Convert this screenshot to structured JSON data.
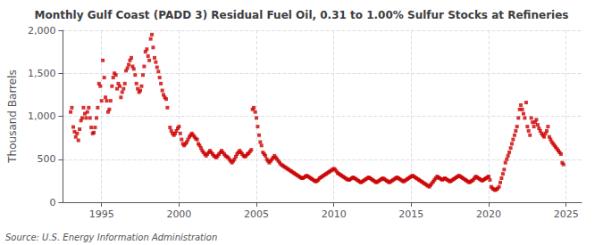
{
  "chart_data": {
    "type": "scatter",
    "title": "Monthly Gulf Coast (PADD 3) Residual Fuel Oil, 0.31 to 1.00% Sulfur Stocks at Refineries",
    "ylabel": "Thousand Barrels",
    "annotation": "Source: U.S. Energy Information Administration",
    "color": "#cc0000",
    "marker": "square",
    "grid": true,
    "xlim": [
      1992.5,
      2026.0
    ],
    "xticks": [
      1995,
      2000,
      2005,
      2010,
      2015,
      2020,
      2025
    ],
    "ylim": [
      0,
      2000
    ],
    "yticks": [
      0,
      500,
      {
        "value": 1000,
        "label": "1,000"
      },
      {
        "value": 1500,
        "label": "1,500"
      },
      {
        "value": 2000,
        "label": "2,000"
      }
    ],
    "x": [
      1993.0,
      1993.08,
      1993.17,
      1993.25,
      1993.33,
      1993.42,
      1993.5,
      1993.58,
      1993.67,
      1993.75,
      1993.83,
      1993.92,
      1994.0,
      1994.08,
      1994.17,
      1994.25,
      1994.33,
      1994.42,
      1994.5,
      1994.58,
      1994.67,
      1994.75,
      1994.83,
      1994.92,
      1995.0,
      1995.08,
      1995.17,
      1995.25,
      1995.33,
      1995.42,
      1995.5,
      1995.58,
      1995.67,
      1995.75,
      1995.83,
      1995.92,
      1996.0,
      1996.08,
      1996.17,
      1996.25,
      1996.33,
      1996.42,
      1996.5,
      1996.58,
      1996.67,
      1996.75,
      1996.83,
      1996.92,
      1997.0,
      1997.08,
      1997.17,
      1997.25,
      1997.33,
      1997.42,
      1997.5,
      1997.58,
      1997.67,
      1997.75,
      1997.83,
      1997.92,
      1998.0,
      1998.08,
      1998.17,
      1998.25,
      1998.33,
      1998.42,
      1998.5,
      1998.58,
      1998.67,
      1998.75,
      1998.83,
      1998.92,
      1999.0,
      1999.08,
      1999.17,
      1999.25,
      1999.42,
      1999.5,
      1999.58,
      1999.67,
      1999.75,
      1999.83,
      1999.92,
      2000.0,
      2000.08,
      2000.17,
      2000.25,
      2000.33,
      2000.42,
      2000.5,
      2000.58,
      2000.67,
      2000.75,
      2000.83,
      2000.92,
      2001.0,
      2001.08,
      2001.17,
      2001.25,
      2001.33,
      2001.42,
      2001.5,
      2001.58,
      2001.67,
      2001.75,
      2001.83,
      2001.92,
      2002.0,
      2002.08,
      2002.17,
      2002.25,
      2002.33,
      2002.42,
      2002.5,
      2002.58,
      2002.67,
      2002.75,
      2002.83,
      2002.92,
      2003.0,
      2003.08,
      2003.17,
      2003.25,
      2003.33,
      2003.42,
      2003.5,
      2003.58,
      2003.67,
      2003.75,
      2003.83,
      2003.92,
      2004.0,
      2004.08,
      2004.17,
      2004.25,
      2004.33,
      2004.42,
      2004.5,
      2004.58,
      2004.67,
      2004.75,
      2004.83,
      2004.92,
      2005.0,
      2005.08,
      2005.17,
      2005.25,
      2005.33,
      2005.42,
      2005.5,
      2005.58,
      2005.67,
      2005.75,
      2005.83,
      2005.92,
      2006.0,
      2006.08,
      2006.17,
      2006.25,
      2006.33,
      2006.42,
      2006.5,
      2006.58,
      2006.67,
      2006.75,
      2006.83,
      2006.92,
      2007.0,
      2007.08,
      2007.17,
      2007.25,
      2007.33,
      2007.42,
      2007.5,
      2007.58,
      2007.67,
      2007.75,
      2007.83,
      2007.92,
      2008.0,
      2008.08,
      2008.17,
      2008.25,
      2008.33,
      2008.42,
      2008.5,
      2008.58,
      2008.67,
      2008.75,
      2008.83,
      2008.92,
      2009.0,
      2009.08,
      2009.17,
      2009.25,
      2009.33,
      2009.42,
      2009.5,
      2009.58,
      2009.67,
      2009.75,
      2009.83,
      2009.92,
      2010.0,
      2010.08,
      2010.17,
      2010.25,
      2010.33,
      2010.42,
      2010.5,
      2010.58,
      2010.67,
      2010.75,
      2010.83,
      2010.92,
      2011.0,
      2011.08,
      2011.17,
      2011.25,
      2011.33,
      2011.42,
      2011.5,
      2011.58,
      2011.67,
      2011.75,
      2011.83,
      2011.92,
      2012.0,
      2012.08,
      2012.17,
      2012.25,
      2012.33,
      2012.42,
      2012.5,
      2012.58,
      2012.67,
      2012.75,
      2012.83,
      2012.92,
      2013.0,
      2013.08,
      2013.17,
      2013.25,
      2013.33,
      2013.42,
      2013.5,
      2013.58,
      2013.67,
      2013.75,
      2013.83,
      2013.92,
      2014.0,
      2014.08,
      2014.17,
      2014.25,
      2014.33,
      2014.42,
      2014.5,
      2014.58,
      2014.67,
      2014.75,
      2014.83,
      2014.92,
      2015.0,
      2015.08,
      2015.17,
      2015.25,
      2015.33,
      2015.42,
      2015.5,
      2015.58,
      2015.67,
      2015.75,
      2015.83,
      2015.92,
      2016.0,
      2016.08,
      2016.17,
      2016.25,
      2016.33,
      2016.42,
      2016.5,
      2016.58,
      2016.67,
      2016.75,
      2016.83,
      2016.92,
      2017.0,
      2017.08,
      2017.17,
      2017.25,
      2017.33,
      2017.42,
      2017.5,
      2017.58,
      2017.67,
      2017.75,
      2017.83,
      2017.92,
      2018.0,
      2018.08,
      2018.17,
      2018.25,
      2018.33,
      2018.42,
      2018.5,
      2018.58,
      2018.67,
      2018.75,
      2018.83,
      2018.92,
      2019.0,
      2019.08,
      2019.17,
      2019.25,
      2019.33,
      2019.42,
      2019.5,
      2019.58,
      2019.67,
      2019.75,
      2019.83,
      2019.92,
      2020.0,
      2020.08,
      2020.17,
      2020.25,
      2020.33,
      2020.42,
      2020.5,
      2020.58,
      2020.67,
      2020.75,
      2020.83,
      2020.92,
      2021.0,
      2021.08,
      2021.17,
      2021.25,
      2021.33,
      2021.42,
      2021.5,
      2021.58,
      2021.67,
      2021.75,
      2021.83,
      2021.92,
      2022.0,
      2022.08,
      2022.17,
      2022.25,
      2022.33,
      2022.42,
      2022.5,
      2022.58,
      2022.67,
      2022.75,
      2022.83,
      2022.92,
      2023.0,
      2023.08,
      2023.17,
      2023.25,
      2023.33,
      2023.42,
      2023.5,
      2023.58,
      2023.67,
      2023.75,
      2023.83,
      2023.92,
      2024.0,
      2024.08,
      2024.17,
      2024.25,
      2024.33,
      2024.42,
      2024.5,
      2024.58,
      2024.67,
      2024.75,
      2024.83
    ],
    "values": [
      1050,
      1100,
      875,
      820,
      760,
      800,
      720,
      850,
      950,
      980,
      1100,
      1030,
      980,
      1050,
      1100,
      980,
      870,
      800,
      810,
      870,
      980,
      1100,
      1380,
      1350,
      1180,
      1650,
      1450,
      1220,
      1180,
      1050,
      1080,
      1180,
      1350,
      1450,
      1500,
      1480,
      1320,
      1380,
      1350,
      1220,
      1280,
      1320,
      1380,
      1530,
      1560,
      1600,
      1650,
      1680,
      1580,
      1550,
      1480,
      1380,
      1320,
      1280,
      1300,
      1350,
      1480,
      1580,
      1750,
      1780,
      1700,
      1650,
      1900,
      1950,
      1800,
      1680,
      1630,
      1570,
      1520,
      1450,
      1380,
      1300,
      1250,
      1220,
      1200,
      1100,
      870,
      830,
      800,
      780,
      800,
      830,
      860,
      880,
      800,
      730,
      680,
      660,
      680,
      700,
      730,
      760,
      780,
      800,
      780,
      760,
      740,
      730,
      680,
      660,
      630,
      600,
      580,
      560,
      540,
      560,
      580,
      600,
      580,
      560,
      540,
      530,
      520,
      540,
      560,
      580,
      600,
      580,
      560,
      540,
      530,
      520,
      500,
      480,
      460,
      480,
      500,
      530,
      560,
      580,
      600,
      580,
      560,
      540,
      530,
      540,
      560,
      570,
      590,
      610,
      1080,
      1100,
      1050,
      980,
      880,
      780,
      700,
      660,
      580,
      560,
      540,
      500,
      480,
      460,
      480,
      500,
      520,
      540,
      520,
      500,
      480,
      460,
      440,
      430,
      420,
      410,
      400,
      390,
      380,
      370,
      360,
      350,
      340,
      330,
      320,
      310,
      300,
      290,
      280,
      280,
      290,
      300,
      310,
      300,
      290,
      280,
      270,
      260,
      250,
      240,
      250,
      260,
      280,
      290,
      300,
      310,
      320,
      330,
      340,
      350,
      360,
      370,
      380,
      390,
      380,
      360,
      340,
      330,
      320,
      310,
      300,
      290,
      280,
      270,
      260,
      260,
      270,
      280,
      290,
      280,
      270,
      260,
      250,
      240,
      230,
      240,
      250,
      260,
      270,
      280,
      290,
      280,
      270,
      260,
      250,
      240,
      230,
      240,
      250,
      260,
      270,
      280,
      270,
      260,
      250,
      240,
      230,
      240,
      250,
      260,
      270,
      280,
      290,
      280,
      270,
      260,
      250,
      240,
      250,
      260,
      270,
      280,
      290,
      300,
      310,
      300,
      290,
      280,
      270,
      260,
      250,
      240,
      230,
      220,
      210,
      200,
      190,
      180,
      200,
      220,
      240,
      260,
      280,
      300,
      290,
      280,
      270,
      260,
      270,
      280,
      270,
      260,
      250,
      240,
      250,
      260,
      270,
      280,
      290,
      300,
      310,
      300,
      290,
      280,
      270,
      260,
      250,
      240,
      230,
      240,
      250,
      260,
      280,
      300,
      290,
      280,
      270,
      260,
      250,
      260,
      270,
      280,
      290,
      300,
      260,
      180,
      160,
      150,
      140,
      150,
      160,
      180,
      230,
      280,
      330,
      380,
      460,
      500,
      540,
      580,
      630,
      680,
      730,
      780,
      830,
      880,
      980,
      1080,
      1130,
      1080,
      1030,
      980,
      1160,
      880,
      830,
      780,
      980,
      930,
      880,
      930,
      960,
      900,
      860,
      830,
      800,
      780,
      760,
      800,
      830,
      880,
      760,
      730,
      700,
      680,
      660,
      640,
      620,
      600,
      580,
      560,
      460,
      440
    ]
  }
}
